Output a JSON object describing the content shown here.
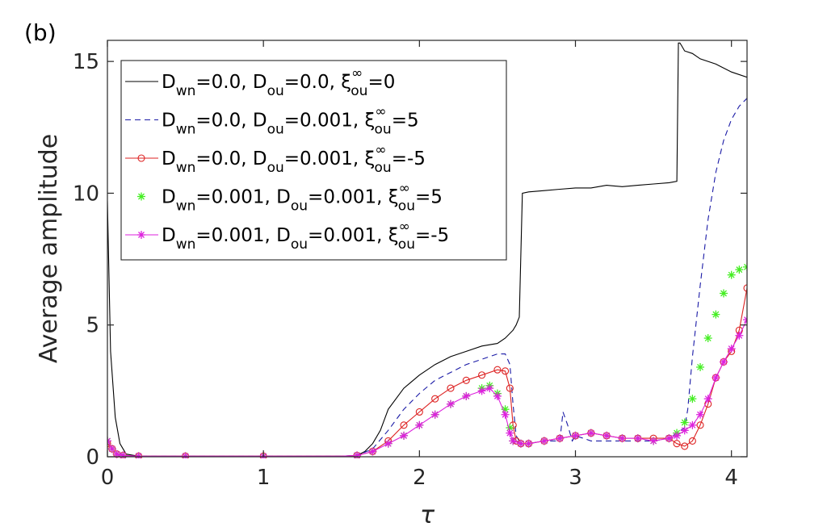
{
  "panel_label": "(b)",
  "chart_data": {
    "type": "line",
    "xlabel": "τ",
    "ylabel": "Average amplitude",
    "xlim": [
      0,
      4.1
    ],
    "ylim": [
      0,
      15.8
    ],
    "xticks": [
      0,
      1,
      2,
      3,
      4
    ],
    "yticks": [
      0,
      5,
      10,
      15
    ],
    "legend_position": "top-left",
    "series": [
      {
        "name": "D_wn=0.0, D_ou=0.0, ξ_ou^∞=0",
        "legend": {
          "p1": "D",
          "s1": "wn",
          "p2": "=0.0, D",
          "s2": "ou",
          "p3": "=0.0, ξ",
          "sup": "∞",
          "s3": "ou",
          "p4": "=0"
        },
        "color": "#000000",
        "style": "solid",
        "marker": "none",
        "x": [
          0,
          0.02,
          0.05,
          0.08,
          0.12,
          0.2,
          0.5,
          1.0,
          1.5,
          1.6,
          1.65,
          1.7,
          1.75,
          1.8,
          1.9,
          2.0,
          2.1,
          2.2,
          2.3,
          2.4,
          2.5,
          2.55,
          2.6,
          2.62,
          2.64,
          2.66,
          2.7,
          2.8,
          2.9,
          3.0,
          3.1,
          3.2,
          3.3,
          3.4,
          3.5,
          3.6,
          3.65,
          3.66,
          3.67,
          3.68,
          3.7,
          3.75,
          3.8,
          3.9,
          4.0,
          4.1
        ],
        "y": [
          9.7,
          4.0,
          1.5,
          0.5,
          0.1,
          0.02,
          0.02,
          0.02,
          0.02,
          0.05,
          0.2,
          0.5,
          1.0,
          1.8,
          2.6,
          3.1,
          3.5,
          3.8,
          4.0,
          4.2,
          4.3,
          4.5,
          4.8,
          5.0,
          5.3,
          10.0,
          10.05,
          10.1,
          10.15,
          10.2,
          10.2,
          10.3,
          10.25,
          10.3,
          10.35,
          10.4,
          10.45,
          15.7,
          15.7,
          15.6,
          15.4,
          15.3,
          15.1,
          14.9,
          14.6,
          14.4
        ]
      },
      {
        "name": "D_wn=0.0, D_ou=0.001, ξ_ou^∞=5",
        "legend": {
          "p1": "D",
          "s1": "wn",
          "p2": "=0.0, D",
          "s2": "ou",
          "p3": "=0.001, ξ",
          "sup": "∞",
          "s3": "ou",
          "p4": "=5"
        },
        "color": "#1a1aa6",
        "style": "dashed",
        "marker": "none",
        "x": [
          0,
          0.03,
          0.06,
          0.1,
          0.2,
          0.5,
          1.0,
          1.5,
          1.6,
          1.7,
          1.8,
          1.9,
          2.0,
          2.1,
          2.2,
          2.3,
          2.4,
          2.5,
          2.55,
          2.58,
          2.6,
          2.62,
          2.65,
          2.7,
          2.8,
          2.9,
          2.92,
          2.95,
          2.98,
          3.0,
          3.05,
          3.1,
          3.2,
          3.3,
          3.4,
          3.5,
          3.6,
          3.7,
          3.72,
          3.75,
          3.8,
          3.85,
          3.9,
          3.95,
          4.0,
          4.05,
          4.1
        ],
        "y": [
          0.5,
          0.3,
          0.1,
          0.05,
          0.02,
          0.02,
          0.02,
          0.02,
          0.05,
          0.3,
          1.0,
          1.8,
          2.4,
          2.9,
          3.2,
          3.5,
          3.7,
          3.9,
          3.9,
          3.5,
          2.0,
          0.8,
          0.5,
          0.5,
          0.6,
          0.6,
          1.7,
          1.2,
          0.6,
          0.8,
          0.7,
          0.6,
          0.6,
          0.6,
          0.6,
          0.6,
          0.7,
          1.1,
          1.8,
          3.8,
          6.5,
          9.0,
          10.8,
          12.0,
          12.8,
          13.3,
          13.6
        ]
      },
      {
        "name": "D_wn=0.0, D_ou=0.001, ξ_ou^∞=-5",
        "legend": {
          "p1": "D",
          "s1": "wn",
          "p2": "=0.0, D",
          "s2": "ou",
          "p3": "=0.001, ξ",
          "sup": "∞",
          "s3": "ou",
          "p4": "=-5"
        },
        "color": "#dd2222",
        "style": "solid",
        "marker": "circle",
        "x": [
          0,
          0.03,
          0.06,
          0.1,
          0.2,
          0.5,
          1.0,
          1.5,
          1.6,
          1.7,
          1.8,
          1.9,
          2.0,
          2.1,
          2.2,
          2.3,
          2.4,
          2.5,
          2.55,
          2.58,
          2.6,
          2.62,
          2.65,
          2.7,
          2.8,
          2.9,
          3.0,
          3.1,
          3.2,
          3.3,
          3.4,
          3.5,
          3.6,
          3.65,
          3.7,
          3.75,
          3.8,
          3.85,
          3.9,
          3.95,
          4.0,
          4.05,
          4.1
        ],
        "y": [
          0.5,
          0.3,
          0.1,
          0.05,
          0.02,
          0.02,
          0.02,
          0.02,
          0.05,
          0.2,
          0.6,
          1.2,
          1.7,
          2.2,
          2.6,
          2.9,
          3.1,
          3.3,
          3.25,
          2.6,
          1.2,
          0.6,
          0.5,
          0.5,
          0.6,
          0.7,
          0.8,
          0.9,
          0.8,
          0.7,
          0.7,
          0.7,
          0.7,
          0.5,
          0.4,
          0.6,
          1.2,
          2.0,
          3.0,
          3.6,
          4.0,
          4.8,
          6.4
        ]
      },
      {
        "name": "D_wn=0.001, D_ou=0.001, ξ_ou^∞=5",
        "legend": {
          "p1": "D",
          "s1": "wn",
          "p2": "=0.001, D",
          "s2": "ou",
          "p3": "=0.001, ξ",
          "sup": "∞",
          "s3": "ou",
          "p4": "=5"
        },
        "color": "#44ee22",
        "style": "none",
        "marker": "asterisk",
        "x": [
          0,
          0.03,
          0.06,
          0.1,
          0.2,
          0.5,
          1.0,
          1.5,
          1.6,
          1.7,
          1.8,
          1.9,
          2.0,
          2.1,
          2.2,
          2.3,
          2.4,
          2.45,
          2.5,
          2.55,
          2.58,
          2.6,
          2.65,
          2.7,
          2.8,
          2.9,
          3.0,
          3.1,
          3.2,
          3.3,
          3.4,
          3.5,
          3.6,
          3.65,
          3.7,
          3.75,
          3.8,
          3.85,
          3.9,
          3.95,
          4.0,
          4.05,
          4.1
        ],
        "y": [
          0.6,
          0.3,
          0.1,
          0.05,
          0.02,
          0.02,
          0.02,
          0.02,
          0.05,
          0.2,
          0.5,
          0.8,
          1.2,
          1.6,
          2.0,
          2.3,
          2.6,
          2.7,
          2.4,
          1.8,
          1.1,
          0.6,
          0.5,
          0.5,
          0.6,
          0.7,
          0.8,
          0.9,
          0.8,
          0.7,
          0.7,
          0.6,
          0.7,
          0.9,
          1.3,
          2.2,
          3.4,
          4.5,
          5.4,
          6.2,
          6.9,
          7.1,
          7.2
        ]
      },
      {
        "name": "D_wn=0.001, D_ou=0.001, ξ_ou^∞=-5",
        "legend": {
          "p1": "D",
          "s1": "wn",
          "p2": "=0.001, D",
          "s2": "ou",
          "p3": "=0.001, ξ",
          "sup": "∞",
          "s3": "ou",
          "p4": "=-5"
        },
        "color": "#dd22dd",
        "style": "solid",
        "marker": "asterisk",
        "x": [
          0,
          0.03,
          0.06,
          0.1,
          0.2,
          0.5,
          1.0,
          1.5,
          1.6,
          1.7,
          1.8,
          1.9,
          2.0,
          2.1,
          2.2,
          2.3,
          2.4,
          2.45,
          2.5,
          2.55,
          2.58,
          2.6,
          2.65,
          2.7,
          2.8,
          2.9,
          3.0,
          3.1,
          3.2,
          3.3,
          3.4,
          3.5,
          3.6,
          3.65,
          3.7,
          3.75,
          3.8,
          3.85,
          3.9,
          3.95,
          4.0,
          4.05,
          4.1
        ],
        "y": [
          0.6,
          0.3,
          0.1,
          0.05,
          0.02,
          0.02,
          0.02,
          0.02,
          0.05,
          0.2,
          0.5,
          0.8,
          1.2,
          1.6,
          2.0,
          2.3,
          2.5,
          2.6,
          2.3,
          1.6,
          0.9,
          0.6,
          0.5,
          0.5,
          0.6,
          0.7,
          0.8,
          0.9,
          0.8,
          0.7,
          0.7,
          0.6,
          0.7,
          0.8,
          1.0,
          1.2,
          1.6,
          2.2,
          3.0,
          3.6,
          4.1,
          4.6,
          5.2
        ]
      }
    ]
  }
}
